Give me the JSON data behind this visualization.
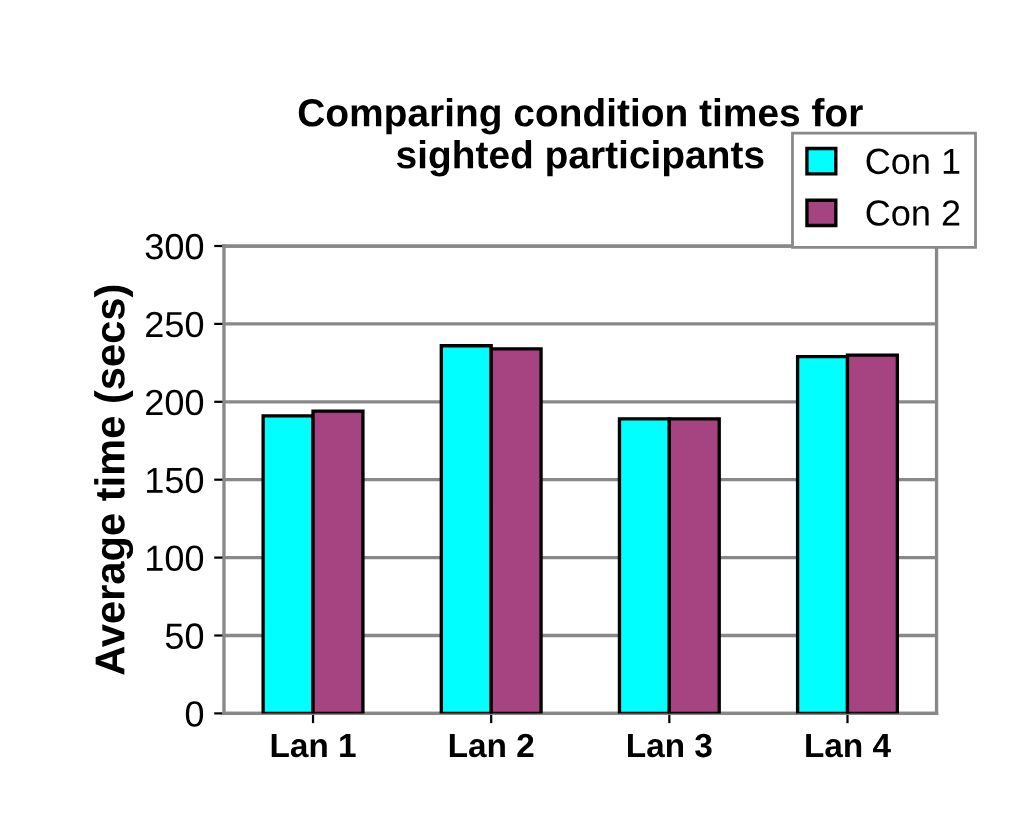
{
  "chart_data": {
    "type": "bar",
    "title": "Comparing condition times for\nsighted participants",
    "ylabel": "Average time (secs)",
    "categories": [
      "Lan 1",
      "Lan 2",
      "Lan 3",
      "Lan 4"
    ],
    "series": [
      {
        "name": "Con 1",
        "color": "#00ffff",
        "values": [
          191,
          236,
          189,
          229
        ]
      },
      {
        "name": "Con 2",
        "color": "#a64482",
        "values": [
          194,
          234,
          189,
          230
        ]
      }
    ],
    "ylim": [
      0,
      300
    ],
    "yticks": [
      0,
      50,
      100,
      150,
      200,
      250,
      300
    ],
    "grid": "y",
    "legend": "top right"
  }
}
